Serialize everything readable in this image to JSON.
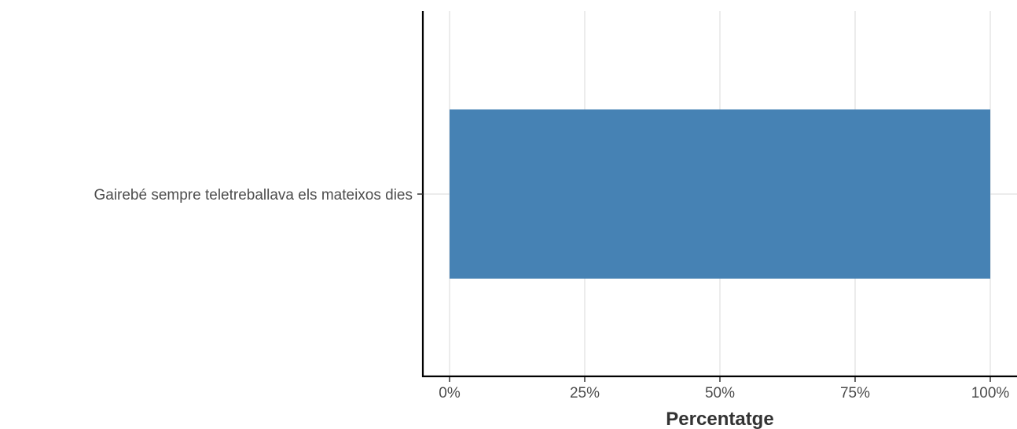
{
  "chart_data": {
    "type": "bar",
    "orientation": "horizontal",
    "categories": [
      "Gairebé sempre teletreballava els mateixos dies"
    ],
    "values": [
      100
    ],
    "xlabel": "Percentatge",
    "ylabel": "",
    "xlim": [
      0,
      100
    ],
    "x_ticks": [
      "0%",
      "25%",
      "50%",
      "75%",
      "100%"
    ],
    "x_tick_values": [
      0,
      25,
      50,
      75,
      100
    ],
    "grid": true,
    "bar_color": "#4682b4"
  }
}
